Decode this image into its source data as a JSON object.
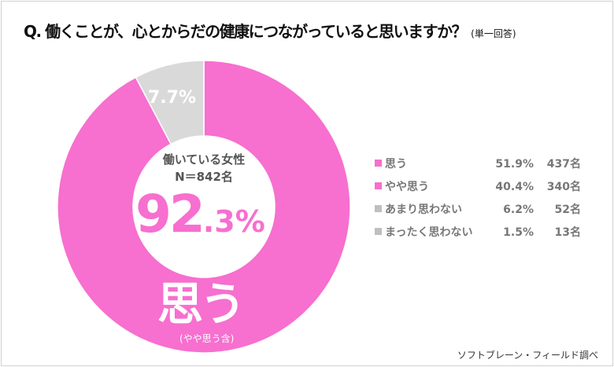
{
  "title": {
    "question": "Q.  働くことが、心とからだの健康につながっていると思いますか？",
    "note": "(単一回答)"
  },
  "chart_data": {
    "type": "pie",
    "variant": "donut",
    "slices": [
      {
        "label": "思う（やや思う含）",
        "value": 92.3,
        "color": "#f76fcf"
      },
      {
        "label": "7.7%",
        "value": 7.7,
        "color": "#d9d9d9"
      }
    ],
    "center": {
      "line1": "働いている女性",
      "line2": "N＝842名",
      "big_int": "92",
      "big_dec": ".3%"
    },
    "pink_label": "思う",
    "pink_sublabel": "(やや思う含)",
    "gray_label": "7.7%",
    "legend_position": "right",
    "legend": [
      {
        "label": "思う",
        "pct": "51.9%",
        "count": "437名",
        "color": "#f76fcf"
      },
      {
        "label": "やや思う",
        "pct": "40.4%",
        "count": "340名",
        "color": "#f76fcf"
      },
      {
        "label": "あまり思わない",
        "pct": "6.2%",
        "count": "52名",
        "color": "#bfbfbf"
      },
      {
        "label": "まったく思わない",
        "pct": "1.5%",
        "count": "13名",
        "color": "#bfbfbf"
      }
    ]
  },
  "source": "ソフトブレーン・フィールド調べ"
}
